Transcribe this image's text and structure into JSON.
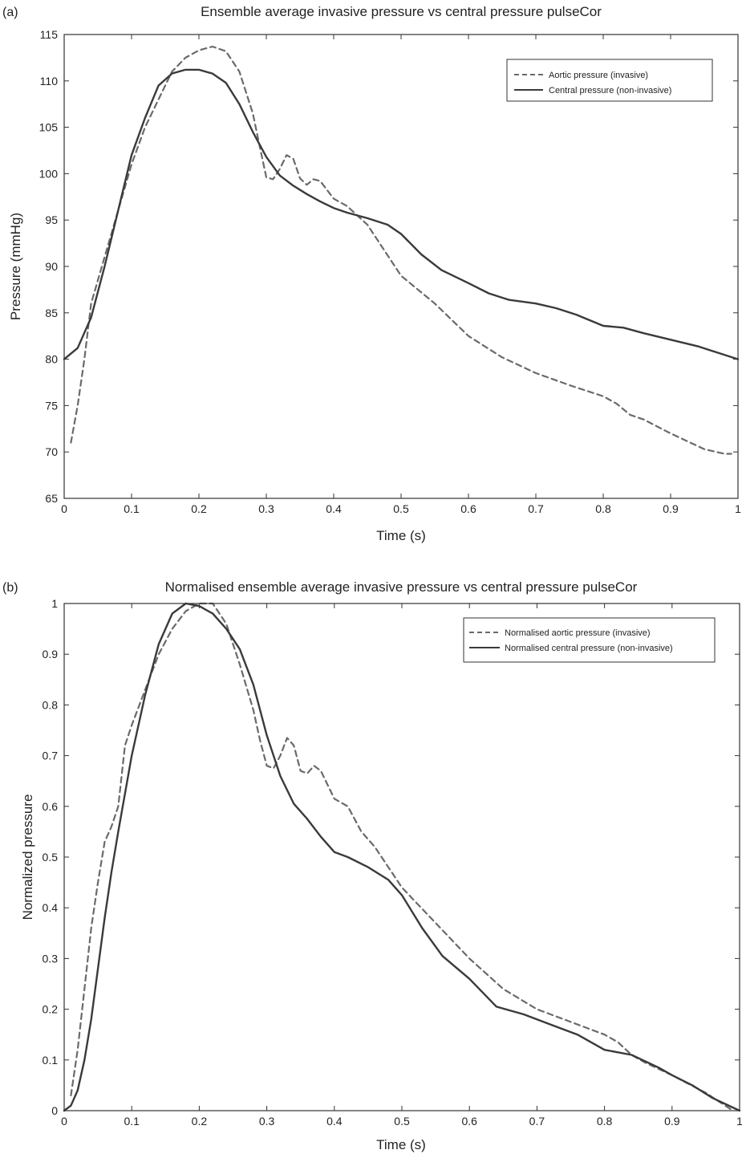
{
  "chart_data": [
    {
      "type": "line",
      "panel_label": "(a)",
      "title": "Ensemble average invasive pressure vs central pressure pulseCor",
      "xlabel": "Time (s)",
      "ylabel": "Pressure (mmHg)",
      "xlim": [
        0,
        1
      ],
      "ylim": [
        65,
        115
      ],
      "xticks": [
        0,
        0.1,
        0.2,
        0.3,
        0.4,
        0.5,
        0.6,
        0.7,
        0.8,
        0.9,
        1
      ],
      "yticks": [
        65,
        70,
        75,
        80,
        85,
        90,
        95,
        100,
        105,
        110,
        115
      ],
      "grid": false,
      "legend_position": "top-right",
      "series": [
        {
          "name": "Aortic pressure (invasive)",
          "style": "dashed",
          "color": "#6a6a6a",
          "x": [
            0.01,
            0.02,
            0.03,
            0.04,
            0.06,
            0.08,
            0.1,
            0.12,
            0.14,
            0.16,
            0.18,
            0.2,
            0.22,
            0.24,
            0.26,
            0.28,
            0.29,
            0.3,
            0.31,
            0.32,
            0.33,
            0.34,
            0.35,
            0.36,
            0.37,
            0.38,
            0.4,
            0.42,
            0.45,
            0.5,
            0.55,
            0.6,
            0.65,
            0.7,
            0.75,
            0.8,
            0.82,
            0.84,
            0.86,
            0.9,
            0.95,
            0.98,
            0.99
          ],
          "y": [
            71,
            75,
            80,
            86,
            91,
            96,
            101,
            105,
            108,
            111,
            112.5,
            113.3,
            113.7,
            113.2,
            111,
            106.5,
            103,
            99.6,
            99.4,
            100.5,
            102,
            101.6,
            99.5,
            98.8,
            99.4,
            99.2,
            97.3,
            96.5,
            94.5,
            89,
            86,
            82.5,
            80.2,
            78.5,
            77.2,
            76,
            75.2,
            74,
            73.5,
            72,
            70.3,
            69.8,
            69.8
          ]
        },
        {
          "name": "Central pressure (non-invasive)",
          "style": "solid",
          "color": "#3a3a3a",
          "x": [
            0,
            0.02,
            0.04,
            0.06,
            0.08,
            0.1,
            0.12,
            0.14,
            0.16,
            0.18,
            0.2,
            0.22,
            0.24,
            0.26,
            0.28,
            0.3,
            0.32,
            0.34,
            0.36,
            0.38,
            0.4,
            0.42,
            0.45,
            0.48,
            0.5,
            0.53,
            0.56,
            0.6,
            0.63,
            0.66,
            0.7,
            0.73,
            0.76,
            0.8,
            0.83,
            0.86,
            0.9,
            0.94,
            0.97,
            1.0
          ],
          "y": [
            80,
            81.2,
            84.5,
            90,
            96,
            102,
            106,
            109.5,
            110.8,
            111.2,
            111.2,
            110.8,
            109.8,
            107.5,
            104.5,
            101.8,
            99.8,
            98.7,
            97.8,
            97,
            96.3,
            95.8,
            95.2,
            94.5,
            93.5,
            91.3,
            89.6,
            88.2,
            87.1,
            86.4,
            86.0,
            85.5,
            84.8,
            83.6,
            83.4,
            82.8,
            82.1,
            81.4,
            80.7,
            80
          ]
        }
      ]
    },
    {
      "type": "line",
      "panel_label": "(b)",
      "title": "Normalised ensemble average invasive pressure vs central pressure pulseCor",
      "xlabel": "Time (s)",
      "ylabel": "Normalized pressure",
      "xlim": [
        0,
        1
      ],
      "ylim": [
        0,
        1
      ],
      "xticks": [
        0,
        0.1,
        0.2,
        0.3,
        0.4,
        0.5,
        0.6,
        0.7,
        0.8,
        0.9,
        1
      ],
      "yticks": [
        0,
        0.1,
        0.2,
        0.3,
        0.4,
        0.5,
        0.6,
        0.7,
        0.8,
        0.9,
        1
      ],
      "grid": false,
      "legend_position": "top-right",
      "series": [
        {
          "name": "Normalised aortic pressure (invasive)",
          "style": "dashed",
          "color": "#6a6a6a",
          "x": [
            0.01,
            0.02,
            0.03,
            0.04,
            0.05,
            0.06,
            0.07,
            0.08,
            0.09,
            0.1,
            0.12,
            0.14,
            0.16,
            0.18,
            0.2,
            0.22,
            0.24,
            0.26,
            0.28,
            0.29,
            0.3,
            0.31,
            0.32,
            0.33,
            0.34,
            0.35,
            0.36,
            0.37,
            0.38,
            0.4,
            0.42,
            0.44,
            0.46,
            0.5,
            0.55,
            0.6,
            0.65,
            0.7,
            0.75,
            0.8,
            0.82,
            0.84,
            0.86,
            0.9,
            0.95,
            0.99
          ],
          "y": [
            0.03,
            0.12,
            0.24,
            0.36,
            0.45,
            0.53,
            0.56,
            0.6,
            0.72,
            0.76,
            0.83,
            0.9,
            0.95,
            0.985,
            1.0,
            1.0,
            0.96,
            0.88,
            0.79,
            0.73,
            0.68,
            0.675,
            0.7,
            0.735,
            0.72,
            0.67,
            0.665,
            0.68,
            0.67,
            0.615,
            0.6,
            0.55,
            0.52,
            0.44,
            0.37,
            0.3,
            0.24,
            0.2,
            0.175,
            0.15,
            0.135,
            0.11,
            0.095,
            0.07,
            0.035,
            0.0
          ]
        },
        {
          "name": "Normalised central pressure (non-invasive)",
          "style": "solid",
          "color": "#3a3a3a",
          "x": [
            0,
            0.01,
            0.02,
            0.03,
            0.04,
            0.05,
            0.06,
            0.07,
            0.08,
            0.1,
            0.12,
            0.14,
            0.16,
            0.18,
            0.2,
            0.22,
            0.24,
            0.26,
            0.28,
            0.3,
            0.32,
            0.34,
            0.36,
            0.38,
            0.4,
            0.42,
            0.45,
            0.48,
            0.5,
            0.53,
            0.56,
            0.6,
            0.64,
            0.68,
            0.72,
            0.76,
            0.8,
            0.84,
            0.88,
            0.9,
            0.93,
            0.96,
            1.0
          ],
          "y": [
            0,
            0.01,
            0.04,
            0.1,
            0.18,
            0.28,
            0.38,
            0.47,
            0.55,
            0.7,
            0.82,
            0.92,
            0.98,
            1.0,
            0.995,
            0.98,
            0.95,
            0.91,
            0.84,
            0.74,
            0.66,
            0.605,
            0.575,
            0.54,
            0.51,
            0.5,
            0.48,
            0.455,
            0.425,
            0.36,
            0.305,
            0.26,
            0.205,
            0.19,
            0.17,
            0.15,
            0.12,
            0.11,
            0.085,
            0.07,
            0.05,
            0.025,
            0.0
          ]
        }
      ]
    }
  ]
}
